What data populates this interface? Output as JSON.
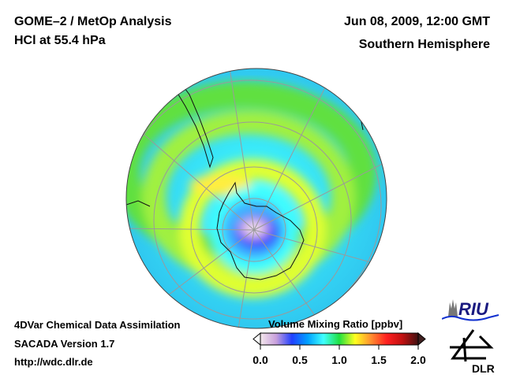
{
  "header": {
    "title_line1": "GOME–2 / MetOp Analysis",
    "title_line2": "HCl at 55.4 hPa",
    "date": "Jun 08, 2009, 12:00 GMT",
    "region": "Southern Hemisphere"
  },
  "footer": {
    "line1": "4DVar Chemical Data Assimilation",
    "line2": "SACADA Version 1.7",
    "line3": "http://wdc.dlr.de"
  },
  "colorbar": {
    "title": "Volume Mixing Ratio [ppbv]",
    "ticks": [
      "0.0",
      "0.5",
      "1.0",
      "1.5",
      "2.0"
    ],
    "range": [
      0.0,
      2.0
    ],
    "colors": [
      "#f4e8ec",
      "#c8a0dc",
      "#2040ff",
      "#00a0ff",
      "#40ffff",
      "#20e040",
      "#ffff20",
      "#ff9030",
      "#ff2020",
      "#c01010",
      "#401010"
    ]
  },
  "logos": {
    "riu": "RIU",
    "dlr": "DLR"
  }
}
